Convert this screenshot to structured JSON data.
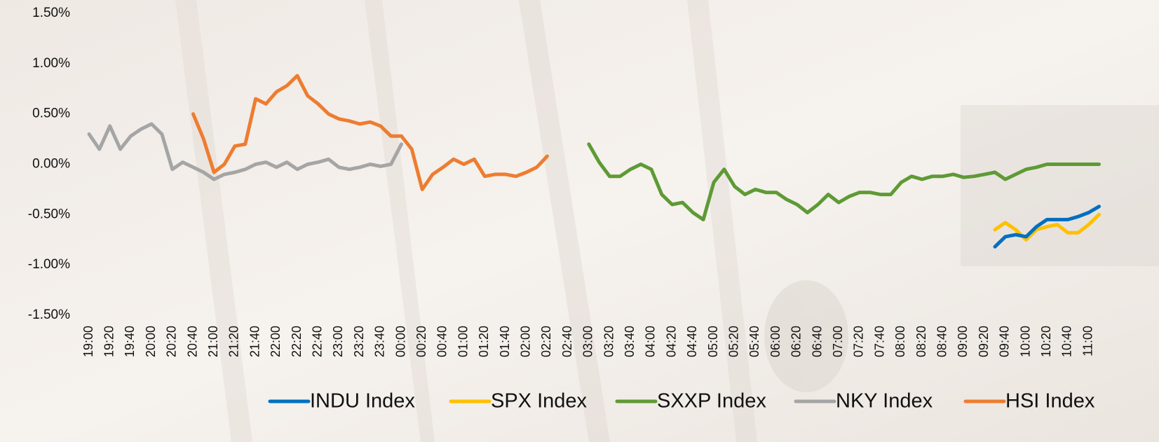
{
  "chart_data": {
    "type": "line",
    "categories": [
      "19:00",
      null,
      "19:20",
      null,
      "19:40",
      null,
      "20:00",
      null,
      "20:20",
      null,
      "20:40",
      null,
      "21:00",
      null,
      "21:20",
      null,
      "21:40",
      null,
      "22:00",
      null,
      "22:20",
      null,
      "22:40",
      null,
      "23:00",
      null,
      "23:20",
      null,
      "23:40",
      null,
      "00:00",
      null,
      "00:20",
      null,
      "00:40",
      null,
      "01:00",
      null,
      "01:20",
      null,
      "01:40",
      null,
      "02:00",
      null,
      "02:20",
      null,
      "02:40",
      null,
      "03:00",
      null,
      "03:20",
      null,
      "03:40",
      null,
      "04:00",
      null,
      "04:20",
      null,
      "04:40",
      null,
      "05:00",
      null,
      "05:20",
      null,
      "05:40",
      null,
      "06:00",
      null,
      "06:20",
      null,
      "06:40",
      null,
      "07:00",
      null,
      "07:20",
      null,
      "07:40",
      null,
      "08:00",
      null,
      "08:20",
      null,
      "08:40",
      null,
      "09:00",
      null,
      "09:20",
      null,
      "09:40",
      null,
      "10:00",
      null,
      "10:20",
      null,
      "10:40",
      null,
      "11:00",
      null
    ],
    "series": [
      {
        "name": "INDU Index",
        "color": "#0070c0",
        "values": [
          null,
          null,
          null,
          null,
          null,
          null,
          null,
          null,
          null,
          null,
          null,
          null,
          null,
          null,
          null,
          null,
          null,
          null,
          null,
          null,
          null,
          null,
          null,
          null,
          null,
          null,
          null,
          null,
          null,
          null,
          null,
          null,
          null,
          null,
          null,
          null,
          null,
          null,
          null,
          null,
          null,
          null,
          null,
          null,
          null,
          null,
          null,
          null,
          null,
          null,
          null,
          null,
          null,
          null,
          null,
          null,
          null,
          null,
          null,
          null,
          null,
          null,
          null,
          null,
          null,
          null,
          null,
          null,
          null,
          null,
          null,
          null,
          null,
          null,
          null,
          null,
          null,
          null,
          null,
          null,
          null,
          null,
          null,
          null,
          null,
          null,
          null,
          -0.82,
          -0.72,
          -0.7,
          -0.72,
          -0.62,
          -0.55,
          -0.55,
          -0.55,
          -0.52,
          -0.48,
          -0.42
        ]
      },
      {
        "name": "SPX Index",
        "color": "#ffc000",
        "values": [
          null,
          null,
          null,
          null,
          null,
          null,
          null,
          null,
          null,
          null,
          null,
          null,
          null,
          null,
          null,
          null,
          null,
          null,
          null,
          null,
          null,
          null,
          null,
          null,
          null,
          null,
          null,
          null,
          null,
          null,
          null,
          null,
          null,
          null,
          null,
          null,
          null,
          null,
          null,
          null,
          null,
          null,
          null,
          null,
          null,
          null,
          null,
          null,
          null,
          null,
          null,
          null,
          null,
          null,
          null,
          null,
          null,
          null,
          null,
          null,
          null,
          null,
          null,
          null,
          null,
          null,
          null,
          null,
          null,
          null,
          null,
          null,
          null,
          null,
          null,
          null,
          null,
          null,
          null,
          null,
          null,
          null,
          null,
          null,
          null,
          null,
          null,
          -0.65,
          -0.58,
          -0.65,
          -0.75,
          -0.65,
          -0.62,
          -0.6,
          -0.68,
          -0.68,
          -0.6,
          -0.5
        ]
      },
      {
        "name": "SXXP Index",
        "color": "#5e9a35",
        "values": [
          null,
          null,
          null,
          null,
          null,
          null,
          null,
          null,
          null,
          null,
          null,
          null,
          null,
          null,
          null,
          null,
          null,
          null,
          null,
          null,
          null,
          null,
          null,
          null,
          null,
          null,
          null,
          null,
          null,
          null,
          null,
          null,
          null,
          null,
          null,
          null,
          null,
          null,
          null,
          null,
          null,
          null,
          null,
          null,
          null,
          null,
          null,
          null,
          0.2,
          0.02,
          -0.12,
          -0.12,
          -0.05,
          0.0,
          -0.05,
          -0.3,
          -0.4,
          -0.38,
          -0.48,
          -0.55,
          -0.18,
          -0.05,
          -0.22,
          -0.3,
          -0.25,
          -0.28,
          -0.28,
          -0.35,
          -0.4,
          -0.48,
          -0.4,
          -0.3,
          -0.38,
          -0.32,
          -0.28,
          -0.28,
          -0.3,
          -0.3,
          -0.18,
          -0.12,
          -0.15,
          -0.12,
          -0.12,
          -0.1,
          -0.13,
          -0.12,
          -0.1,
          -0.08,
          -0.15,
          -0.1,
          -0.05,
          -0.03,
          0.0,
          0.0,
          0.0,
          0.0,
          0.0,
          0.0
        ]
      },
      {
        "name": "NKY Index",
        "color": "#a5a5a5",
        "values": [
          0.3,
          0.15,
          0.38,
          0.15,
          0.28,
          0.35,
          0.4,
          0.3,
          -0.05,
          0.02,
          -0.03,
          -0.08,
          -0.15,
          -0.1,
          -0.08,
          -0.05,
          0.0,
          0.02,
          -0.03,
          0.02,
          -0.05,
          0.0,
          0.02,
          0.05,
          -0.03,
          -0.05,
          -0.03,
          0.0,
          -0.02,
          0.0,
          0.2,
          null,
          null,
          null,
          null,
          null,
          null,
          null,
          null,
          null,
          null,
          null,
          null,
          null,
          null,
          null,
          null,
          null,
          null,
          null,
          null,
          null,
          null,
          null,
          null,
          null,
          null,
          null,
          null,
          null,
          null,
          null,
          null,
          null,
          null,
          null,
          null,
          null,
          null,
          null,
          null,
          null,
          null,
          null,
          null,
          null,
          null,
          null,
          null,
          null,
          null,
          null,
          null,
          null,
          null,
          null,
          null,
          null,
          null,
          null,
          null,
          null,
          null,
          null,
          null,
          null,
          null,
          null
        ]
      },
      {
        "name": "HSI Index",
        "color": "#ed7d31",
        "values": [
          null,
          null,
          null,
          null,
          null,
          null,
          null,
          null,
          null,
          null,
          0.5,
          0.25,
          -0.08,
          0.0,
          0.18,
          0.2,
          0.65,
          0.6,
          0.72,
          0.78,
          0.88,
          0.68,
          0.6,
          0.5,
          0.45,
          0.43,
          0.4,
          0.42,
          0.38,
          0.28,
          0.28,
          0.15,
          -0.25,
          -0.1,
          -0.03,
          0.05,
          0.0,
          0.05,
          -0.12,
          -0.1,
          -0.1,
          -0.12,
          -0.08,
          -0.03,
          0.08,
          null,
          null,
          null,
          null,
          null,
          null,
          null,
          null,
          null,
          null,
          null,
          null,
          null,
          null,
          null,
          null,
          null,
          null,
          null,
          null,
          null,
          null,
          null,
          null,
          null,
          null,
          null,
          null,
          null,
          null,
          null,
          null,
          null,
          null,
          null,
          null,
          null,
          null,
          null,
          null,
          null,
          null,
          null,
          null,
          null,
          null,
          null,
          null,
          null,
          null,
          null,
          null,
          null
        ]
      }
    ],
    "ylim": [
      -1.5,
      1.5
    ],
    "yticks": [
      {
        "value": 1.5,
        "label": "1.50%"
      },
      {
        "value": 1.0,
        "label": "1.00%"
      },
      {
        "value": 0.5,
        "label": "0.50%"
      },
      {
        "value": 0,
        "label": "0.00%"
      },
      {
        "value": -0.5,
        "label": "-0.50%"
      },
      {
        "value": -1.0,
        "label": "-1.00%"
      },
      {
        "value": -1.5,
        "label": "-1.50%"
      }
    ],
    "legend": "bottom"
  }
}
